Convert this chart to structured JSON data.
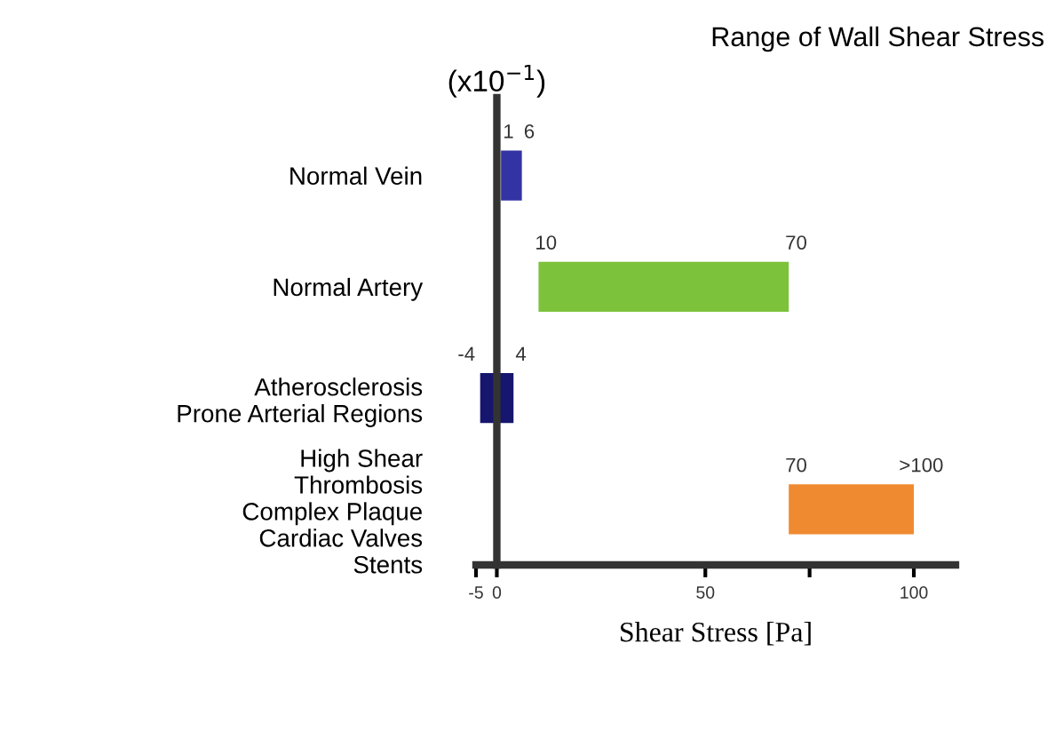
{
  "chart_data": {
    "type": "bar",
    "orientation": "horizontal",
    "title": "Range of Wall Shear Stress",
    "categories": [
      "Normal Vein",
      "Normal Artery",
      "Atherosclerosis\nProne Arterial Regions",
      "High Shear\nThrombosis\nComplex Plaque\nCardiac Valves\nStents"
    ],
    "base": [
      1,
      10,
      -4,
      70
    ],
    "values": [
      5,
      60,
      8,
      30
    ],
    "colors": [
      "#3333a3",
      "#7cc23a",
      "#16166e",
      "#f08a30"
    ],
    "xlabel": "Shear Stress [Pa]",
    "xlim": [
      -5,
      110
    ],
    "xticks": [
      -5,
      0,
      50,
      {
        "value": 75,
        "label": null
      },
      100
    ],
    "annotations": [
      "(x10$^{−1}$)",
      {
        "text": "1",
        "x": 1,
        "y": "Normal Vein"
      },
      {
        "text": "6",
        "x": 6,
        "y": "Normal Vein"
      },
      {
        "text": "10",
        "x": 10,
        "y": "Normal Artery"
      },
      {
        "text": "70",
        "x": 70,
        "y": "Normal Artery"
      },
      {
        "text": "-4",
        "x": -4,
        "y": "Atherosclerosis\nProne Arterial Regions"
      },
      {
        "text": "4",
        "x": 4,
        "y": "Atherosclerosis\nProne Arterial Regions"
      },
      {
        "text": "70",
        "x": 70,
        "y": "High Shear\nThrombosis\nComplex Plaque\nCardiac Valves\nStents"
      },
      {
        "text": ">100",
        "x": 100,
        "y": "High Shear\nThrombosis\nComplex Plaque\nCardiac Valves\nStents"
      }
    ],
    "legend": false
  }
}
